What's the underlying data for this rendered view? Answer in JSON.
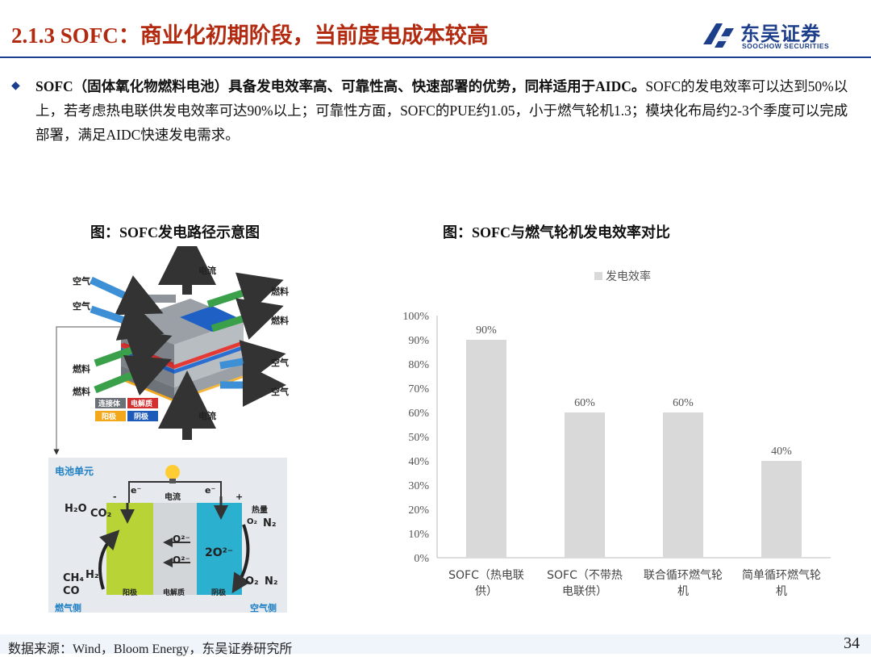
{
  "header": {
    "title": "2.1.3 SOFC：商业化初期阶段，当前度电成本较高",
    "logo_cn": "东吴证券",
    "logo_en": "SOOCHOW SECURITIES"
  },
  "bullet": {
    "bold_text": "SOFC（固体氧化物燃料电池）具备发电效率高、可靠性高、快速部署的优势，同样适用于AIDC。",
    "text": "SOFC的发电效率可以达到50%以上，若考虑热电联供发电效率可达90%以上；可靠性方面，SOFC的PUE约1.05，小于燃气轮机1.3；模块化布局约2-3个季度可以完成部署，满足AIDC快速发电需求。"
  },
  "figure_left": {
    "caption": "图：SOFC发电路径示意图",
    "labels": {
      "air1": "空气",
      "air2": "空气",
      "air3": "空气",
      "air4": "空气",
      "fuel1": "燃料",
      "fuel2": "燃料",
      "fuel3": "燃料",
      "fuel4": "燃料",
      "current_out": "电流",
      "current_in": "电流",
      "legend_interconnect": "连接体",
      "legend_electrolyte": "电解质",
      "legend_anode": "阳极",
      "legend_cathode": "阴极",
      "cell_unit": "电池单元",
      "current": "电流",
      "heat": "热量",
      "anode": "阳极",
      "electrolyte": "电解质",
      "cathode": "阴极",
      "fuel_side": "燃气侧",
      "air_side": "空气侧",
      "e_left": "e⁻",
      "e_right": "e⁻",
      "minus": "-",
      "plus": "+",
      "h2o": "H₂O",
      "co2": "CO₂",
      "ch4": "CH₄",
      "co": "CO",
      "h2": "H₂",
      "o2_top": "O₂",
      "n2_top": "N₂",
      "o2_bot": "O₂",
      "n2_bot": "N₂",
      "o2ion1": "O²⁻",
      "o2ion2": "O²⁻",
      "o2ion3": "2O²⁻"
    }
  },
  "figure_right": {
    "caption": "图：SOFC与燃气轮机发电效率对比"
  },
  "chart_data": {
    "type": "bar",
    "legend": "发电效率",
    "categories": [
      "SOFC（热电联供）",
      "SOFC（不带热电联供）",
      "联合循环燃气轮机",
      "简单循环燃气轮机"
    ],
    "category_lines": [
      [
        "SOFC（热电联",
        "供）"
      ],
      [
        "SOFC（不带热",
        "电联供）"
      ],
      [
        "联合循环燃气轮",
        "机"
      ],
      [
        "简单循环燃气轮",
        "机"
      ]
    ],
    "values": [
      90,
      60,
      60,
      40
    ],
    "value_labels": [
      "90%",
      "60%",
      "60%",
      "40%"
    ],
    "ylim": [
      0,
      100
    ],
    "yticks": [
      "0%",
      "10%",
      "20%",
      "30%",
      "40%",
      "50%",
      "60%",
      "70%",
      "80%",
      "90%",
      "100%"
    ],
    "bar_color": "#d9d9d9"
  },
  "footer": {
    "source": "数据来源：Wind，Bloom Energy，东吴证券研究所",
    "page": "34"
  }
}
